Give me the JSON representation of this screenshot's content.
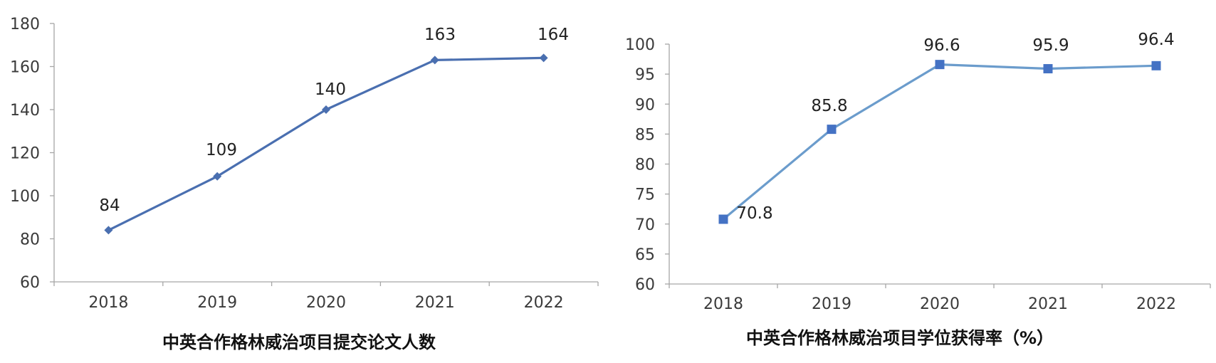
{
  "chart_data": [
    {
      "type": "line",
      "title": "中英合作格林威治项目提交论文人数",
      "categories": [
        "2018",
        "2019",
        "2020",
        "2021",
        "2022"
      ],
      "series": [
        {
          "values": [
            84,
            109,
            140,
            163,
            164
          ]
        }
      ],
      "data_labels": [
        "84",
        "109",
        "140",
        "163",
        "164"
      ],
      "yticks": [
        60,
        80,
        100,
        120,
        140,
        160,
        180
      ],
      "ylim": [
        60,
        180
      ],
      "xlabel": "",
      "ylabel": "",
      "grid": false,
      "marker": "diamond",
      "color": "#4a6fb0"
    },
    {
      "type": "line",
      "title": "中英合作格林威治项目学位获得率（%）",
      "categories": [
        "2018",
        "2019",
        "2020",
        "2021",
        "2022"
      ],
      "series": [
        {
          "values": [
            70.8,
            85.8,
            96.6,
            95.9,
            96.4
          ]
        }
      ],
      "data_labels": [
        "70.8",
        "85.8",
        "96.6",
        "95.9",
        "96.4"
      ],
      "yticks": [
        60,
        65,
        70,
        75,
        80,
        85,
        90,
        95,
        100
      ],
      "ylim": [
        60,
        100
      ],
      "xlabel": "",
      "ylabel": "",
      "grid": false,
      "marker": "square",
      "color": "#6b9ccc",
      "marker_color": "#4472c4"
    }
  ]
}
